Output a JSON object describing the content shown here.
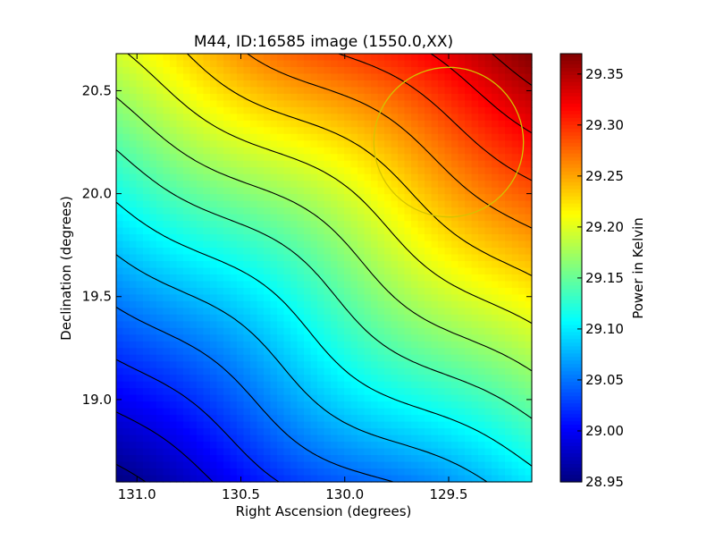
{
  "chart_data": {
    "type": "heatmap",
    "title": "M44, ID:16585 image (1550.0,XX)",
    "xlabel": "Right Ascension (degrees)",
    "ylabel": "Declination (degrees)",
    "xlim": [
      131.1,
      129.1
    ],
    "ylim": [
      18.6,
      20.68
    ],
    "x_reversed": true,
    "x_ticks": [
      131.0,
      130.5,
      130.0,
      129.5
    ],
    "x_tick_labels": [
      "131.0",
      "130.5",
      "130.0",
      "129.5"
    ],
    "y_ticks": [
      19.0,
      19.5,
      20.0,
      20.5
    ],
    "y_tick_labels": [
      "19.0",
      "19.5",
      "20.0",
      "20.5"
    ],
    "colormap": "jet",
    "value_range": [
      28.95,
      29.37
    ],
    "corner_values": {
      "top_left": 29.195,
      "top_right": 29.37,
      "bottom_left": 28.95,
      "bottom_right": 29.1
    },
    "contour_levels": [
      28.96,
      28.99,
      29.02,
      29.05,
      29.08,
      29.11,
      29.14,
      29.17,
      29.2,
      29.23,
      29.26,
      29.29,
      29.32,
      29.35
    ],
    "contour_color": "#000000",
    "colorbar": {
      "label": "Power in Kelvin",
      "ticks": [
        28.95,
        29.0,
        29.05,
        29.1,
        29.15,
        29.2,
        29.25,
        29.3,
        29.35
      ],
      "tick_labels": [
        "28.95",
        "29.00",
        "29.05",
        "29.10",
        "29.15",
        "29.20",
        "29.25",
        "29.30",
        "29.35"
      ]
    },
    "circle": {
      "center_ra": 129.5,
      "center_dec": 20.25,
      "radius_deg": 0.36,
      "color": "#d4c400"
    }
  }
}
